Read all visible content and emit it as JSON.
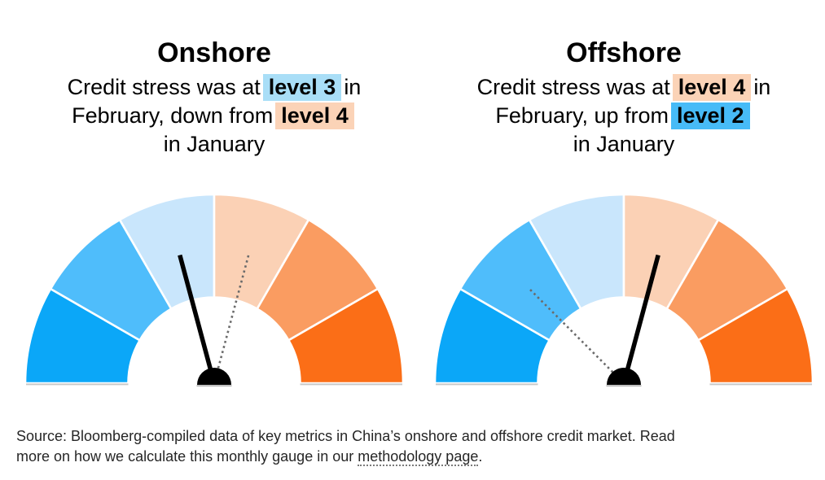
{
  "chart_data": [
    {
      "type": "gauge",
      "title": "Onshore",
      "scale": {
        "segments": 6,
        "min_level": 1,
        "max_level": 6,
        "left_side": "blue (low stress)",
        "right_side": "orange (high stress)"
      },
      "series": [
        {
          "name": "February (current, solid black needle)",
          "level": 3
        },
        {
          "name": "January (previous, dotted gray needle)",
          "level": 4
        }
      ]
    },
    {
      "type": "gauge",
      "title": "Offshore",
      "scale": {
        "segments": 6,
        "min_level": 1,
        "max_level": 6,
        "left_side": "blue (low stress)",
        "right_side": "orange (high stress)"
      },
      "series": [
        {
          "name": "February (current, solid black needle)",
          "level": 4
        },
        {
          "name": "January (previous, dotted gray needle)",
          "level": 2
        }
      ]
    }
  ],
  "panels": [
    {
      "title": "Onshore",
      "line1_pre": "Credit stress was at",
      "line1_badge": "level 3",
      "line1_post": "in",
      "line2_pre": "February, down from",
      "line2_badge": "level 4",
      "line2_post": "",
      "line3": "in January",
      "badge1_color": "#a9def7",
      "badge2_color": "#fbd3b7"
    },
    {
      "title": "Offshore",
      "line1_pre": "Credit stress was at",
      "line1_badge": "level 4",
      "line1_post": "in",
      "line2_pre": "February, up from",
      "line2_badge": "level 2",
      "line2_post": "",
      "line3": "in January",
      "badge1_color": "#fbd3b7",
      "badge2_color": "#47bbf7"
    }
  ],
  "gauge_style": {
    "segment_colors": [
      "#0ba7f8",
      "#4fbdfb",
      "#c9e6fc",
      "#fbd1b5",
      "#fa9c61",
      "#fb6e17"
    ],
    "current_needle_color": "#000000",
    "previous_needle_color": "#6b6b6b",
    "divider_color": "#ffffff",
    "hub_color": "#000000",
    "shadow_color": "#c9c9c9"
  },
  "footer": {
    "line1": "Source: Bloomberg-compiled data of key metrics in China’s onshore and offshore credit market. Read",
    "line2_pre": "more on how we calculate this monthly gauge in our ",
    "link_text": "methodology page",
    "line2_post": "."
  }
}
